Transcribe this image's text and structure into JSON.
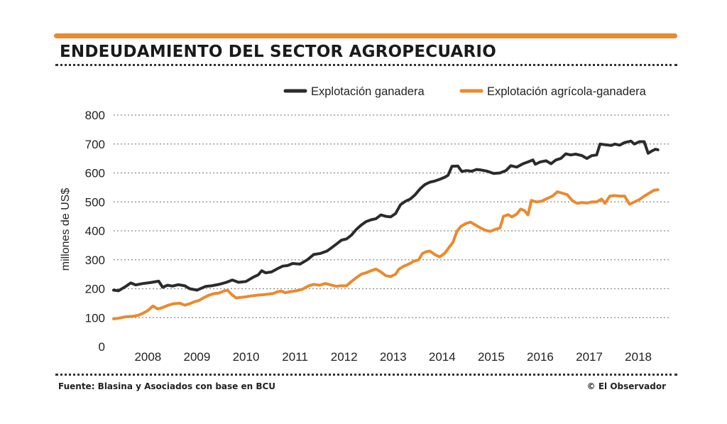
{
  "title": "ENDEUDAMIENTO DEL SECTOR AGROPECUARIO",
  "source": "Fuente: Blasina y Asociados con base en BCU",
  "credit": "© El Observador",
  "colors": {
    "accent": "#ea8a2e",
    "ganadera": "#2b2b2b",
    "agricola": "#ea8a2e",
    "grid": "#8a8a8a"
  },
  "chart_data": {
    "type": "line",
    "title": "",
    "xlabel": "",
    "ylabel": "millones de US$",
    "ylim": [
      0,
      800
    ],
    "yticks": [
      0,
      100,
      200,
      300,
      400,
      500,
      600,
      700,
      800
    ],
    "xlim": [
      2007.5,
      2018.85
    ],
    "xticks": [
      2008,
      2009,
      2010,
      2011,
      2012,
      2013,
      2014,
      2015,
      2016,
      2017,
      2018
    ],
    "grid": true,
    "legend": "top-right",
    "series": [
      {
        "name": "Explotación ganadera",
        "color": "#2b2b2b",
        "points": [
          [
            2007.5,
            195
          ],
          [
            2007.6,
            193
          ],
          [
            2007.75,
            208
          ],
          [
            2007.85,
            220
          ],
          [
            2007.95,
            213
          ],
          [
            2008.1,
            218
          ],
          [
            2008.25,
            221
          ],
          [
            2008.42,
            226
          ],
          [
            2008.5,
            205
          ],
          [
            2008.6,
            212
          ],
          [
            2008.7,
            209
          ],
          [
            2008.82,
            214
          ],
          [
            2008.95,
            210
          ],
          [
            2009.05,
            200
          ],
          [
            2009.2,
            195
          ],
          [
            2009.38,
            208
          ],
          [
            2009.5,
            210
          ],
          [
            2009.65,
            215
          ],
          [
            2009.8,
            222
          ],
          [
            2009.92,
            230
          ],
          [
            2010.05,
            222
          ],
          [
            2010.2,
            225
          ],
          [
            2010.35,
            240
          ],
          [
            2010.45,
            248
          ],
          [
            2010.52,
            262
          ],
          [
            2010.6,
            255
          ],
          [
            2010.72,
            258
          ],
          [
            2010.85,
            270
          ],
          [
            2010.95,
            278
          ],
          [
            2011.05,
            280
          ],
          [
            2011.15,
            287
          ],
          [
            2011.3,
            285
          ],
          [
            2011.45,
            300
          ],
          [
            2011.58,
            318
          ],
          [
            2011.72,
            322
          ],
          [
            2011.85,
            330
          ],
          [
            2011.95,
            342
          ],
          [
            2012.05,
            355
          ],
          [
            2012.15,
            368
          ],
          [
            2012.25,
            372
          ],
          [
            2012.35,
            385
          ],
          [
            2012.45,
            405
          ],
          [
            2012.55,
            420
          ],
          [
            2012.65,
            432
          ],
          [
            2012.75,
            438
          ],
          [
            2012.85,
            442
          ],
          [
            2012.95,
            455
          ],
          [
            2013.05,
            450
          ],
          [
            2013.15,
            448
          ],
          [
            2013.25,
            460
          ],
          [
            2013.35,
            490
          ],
          [
            2013.45,
            502
          ],
          [
            2013.55,
            510
          ],
          [
            2013.65,
            525
          ],
          [
            2013.75,
            545
          ],
          [
            2013.85,
            560
          ],
          [
            2013.95,
            568
          ],
          [
            2014.05,
            572
          ],
          [
            2014.15,
            578
          ],
          [
            2014.25,
            585
          ],
          [
            2014.32,
            592
          ],
          [
            2014.4,
            623
          ],
          [
            2014.52,
            624
          ],
          [
            2014.6,
            605
          ],
          [
            2014.7,
            608
          ],
          [
            2014.8,
            606
          ],
          [
            2014.9,
            612
          ],
          [
            2015.0,
            610
          ],
          [
            2015.12,
            606
          ],
          [
            2015.25,
            598
          ],
          [
            2015.38,
            600
          ],
          [
            2015.5,
            608
          ],
          [
            2015.6,
            625
          ],
          [
            2015.72,
            620
          ],
          [
            2015.85,
            632
          ],
          [
            2015.95,
            638
          ],
          [
            2016.05,
            645
          ],
          [
            2016.1,
            630
          ],
          [
            2016.2,
            638
          ],
          [
            2016.32,
            642
          ],
          [
            2016.42,
            632
          ],
          [
            2016.52,
            645
          ],
          [
            2016.62,
            650
          ],
          [
            2016.72,
            666
          ],
          [
            2016.82,
            662
          ],
          [
            2016.92,
            665
          ],
          [
            2017.05,
            660
          ],
          [
            2017.15,
            650
          ],
          [
            2017.25,
            660
          ],
          [
            2017.35,
            662
          ],
          [
            2017.42,
            700
          ],
          [
            2017.55,
            697
          ],
          [
            2017.65,
            695
          ],
          [
            2017.72,
            700
          ],
          [
            2017.82,
            696
          ],
          [
            2017.92,
            705
          ],
          [
            2018.05,
            710
          ],
          [
            2018.12,
            700
          ],
          [
            2018.22,
            708
          ],
          [
            2018.32,
            708
          ],
          [
            2018.4,
            668
          ],
          [
            2018.48,
            676
          ],
          [
            2018.55,
            682
          ],
          [
            2018.6,
            680
          ]
        ]
      },
      {
        "name": "Explotación agrícola-ganadera",
        "color": "#ea8a2e",
        "points": [
          [
            2007.5,
            96
          ],
          [
            2007.6,
            98
          ],
          [
            2007.75,
            103
          ],
          [
            2007.9,
            105
          ],
          [
            2008.0,
            108
          ],
          [
            2008.1,
            115
          ],
          [
            2008.2,
            125
          ],
          [
            2008.3,
            140
          ],
          [
            2008.4,
            130
          ],
          [
            2008.5,
            135
          ],
          [
            2008.6,
            142
          ],
          [
            2008.72,
            148
          ],
          [
            2008.85,
            150
          ],
          [
            2008.95,
            143
          ],
          [
            2009.05,
            148
          ],
          [
            2009.15,
            155
          ],
          [
            2009.25,
            160
          ],
          [
            2009.35,
            170
          ],
          [
            2009.45,
            178
          ],
          [
            2009.55,
            183
          ],
          [
            2009.65,
            185
          ],
          [
            2009.75,
            192
          ],
          [
            2009.82,
            195
          ],
          [
            2009.92,
            178
          ],
          [
            2010.0,
            168
          ],
          [
            2010.1,
            170
          ],
          [
            2010.2,
            172
          ],
          [
            2010.3,
            175
          ],
          [
            2010.45,
            178
          ],
          [
            2010.6,
            180
          ],
          [
            2010.75,
            183
          ],
          [
            2010.85,
            190
          ],
          [
            2010.92,
            192
          ],
          [
            2011.0,
            186
          ],
          [
            2011.1,
            190
          ],
          [
            2011.2,
            192
          ],
          [
            2011.35,
            198
          ],
          [
            2011.48,
            210
          ],
          [
            2011.58,
            215
          ],
          [
            2011.7,
            212
          ],
          [
            2011.82,
            218
          ],
          [
            2011.95,
            212
          ],
          [
            2012.05,
            208
          ],
          [
            2012.12,
            210
          ],
          [
            2012.25,
            210
          ],
          [
            2012.35,
            225
          ],
          [
            2012.45,
            238
          ],
          [
            2012.55,
            250
          ],
          [
            2012.65,
            255
          ],
          [
            2012.75,
            262
          ],
          [
            2012.85,
            268
          ],
          [
            2012.95,
            258
          ],
          [
            2013.05,
            245
          ],
          [
            2013.15,
            242
          ],
          [
            2013.25,
            250
          ],
          [
            2013.32,
            268
          ],
          [
            2013.42,
            278
          ],
          [
            2013.52,
            285
          ],
          [
            2013.62,
            295
          ],
          [
            2013.72,
            300
          ],
          [
            2013.8,
            322
          ],
          [
            2013.88,
            328
          ],
          [
            2013.95,
            330
          ],
          [
            2014.05,
            318
          ],
          [
            2014.15,
            310
          ],
          [
            2014.25,
            322
          ],
          [
            2014.35,
            345
          ],
          [
            2014.42,
            360
          ],
          [
            2014.5,
            398
          ],
          [
            2014.58,
            415
          ],
          [
            2014.68,
            425
          ],
          [
            2014.78,
            430
          ],
          [
            2014.88,
            420
          ],
          [
            2014.98,
            410
          ],
          [
            2015.08,
            402
          ],
          [
            2015.18,
            398
          ],
          [
            2015.28,
            405
          ],
          [
            2015.38,
            410
          ],
          [
            2015.45,
            450
          ],
          [
            2015.55,
            456
          ],
          [
            2015.62,
            448
          ],
          [
            2015.72,
            458
          ],
          [
            2015.8,
            475
          ],
          [
            2015.88,
            470
          ],
          [
            2015.95,
            455
          ],
          [
            2016.02,
            505
          ],
          [
            2016.12,
            500
          ],
          [
            2016.22,
            502
          ],
          [
            2016.32,
            510
          ],
          [
            2016.45,
            520
          ],
          [
            2016.55,
            535
          ],
          [
            2016.65,
            530
          ],
          [
            2016.75,
            525
          ],
          [
            2016.85,
            505
          ],
          [
            2016.95,
            495
          ],
          [
            2017.05,
            498
          ],
          [
            2017.15,
            496
          ],
          [
            2017.25,
            500
          ],
          [
            2017.35,
            500
          ],
          [
            2017.45,
            510
          ],
          [
            2017.52,
            495
          ],
          [
            2017.62,
            520
          ],
          [
            2017.72,
            522
          ],
          [
            2017.82,
            520
          ],
          [
            2017.92,
            520
          ],
          [
            2018.02,
            492
          ],
          [
            2018.12,
            500
          ],
          [
            2018.22,
            508
          ],
          [
            2018.32,
            520
          ],
          [
            2018.42,
            530
          ],
          [
            2018.52,
            540
          ],
          [
            2018.6,
            542
          ]
        ]
      }
    ]
  }
}
